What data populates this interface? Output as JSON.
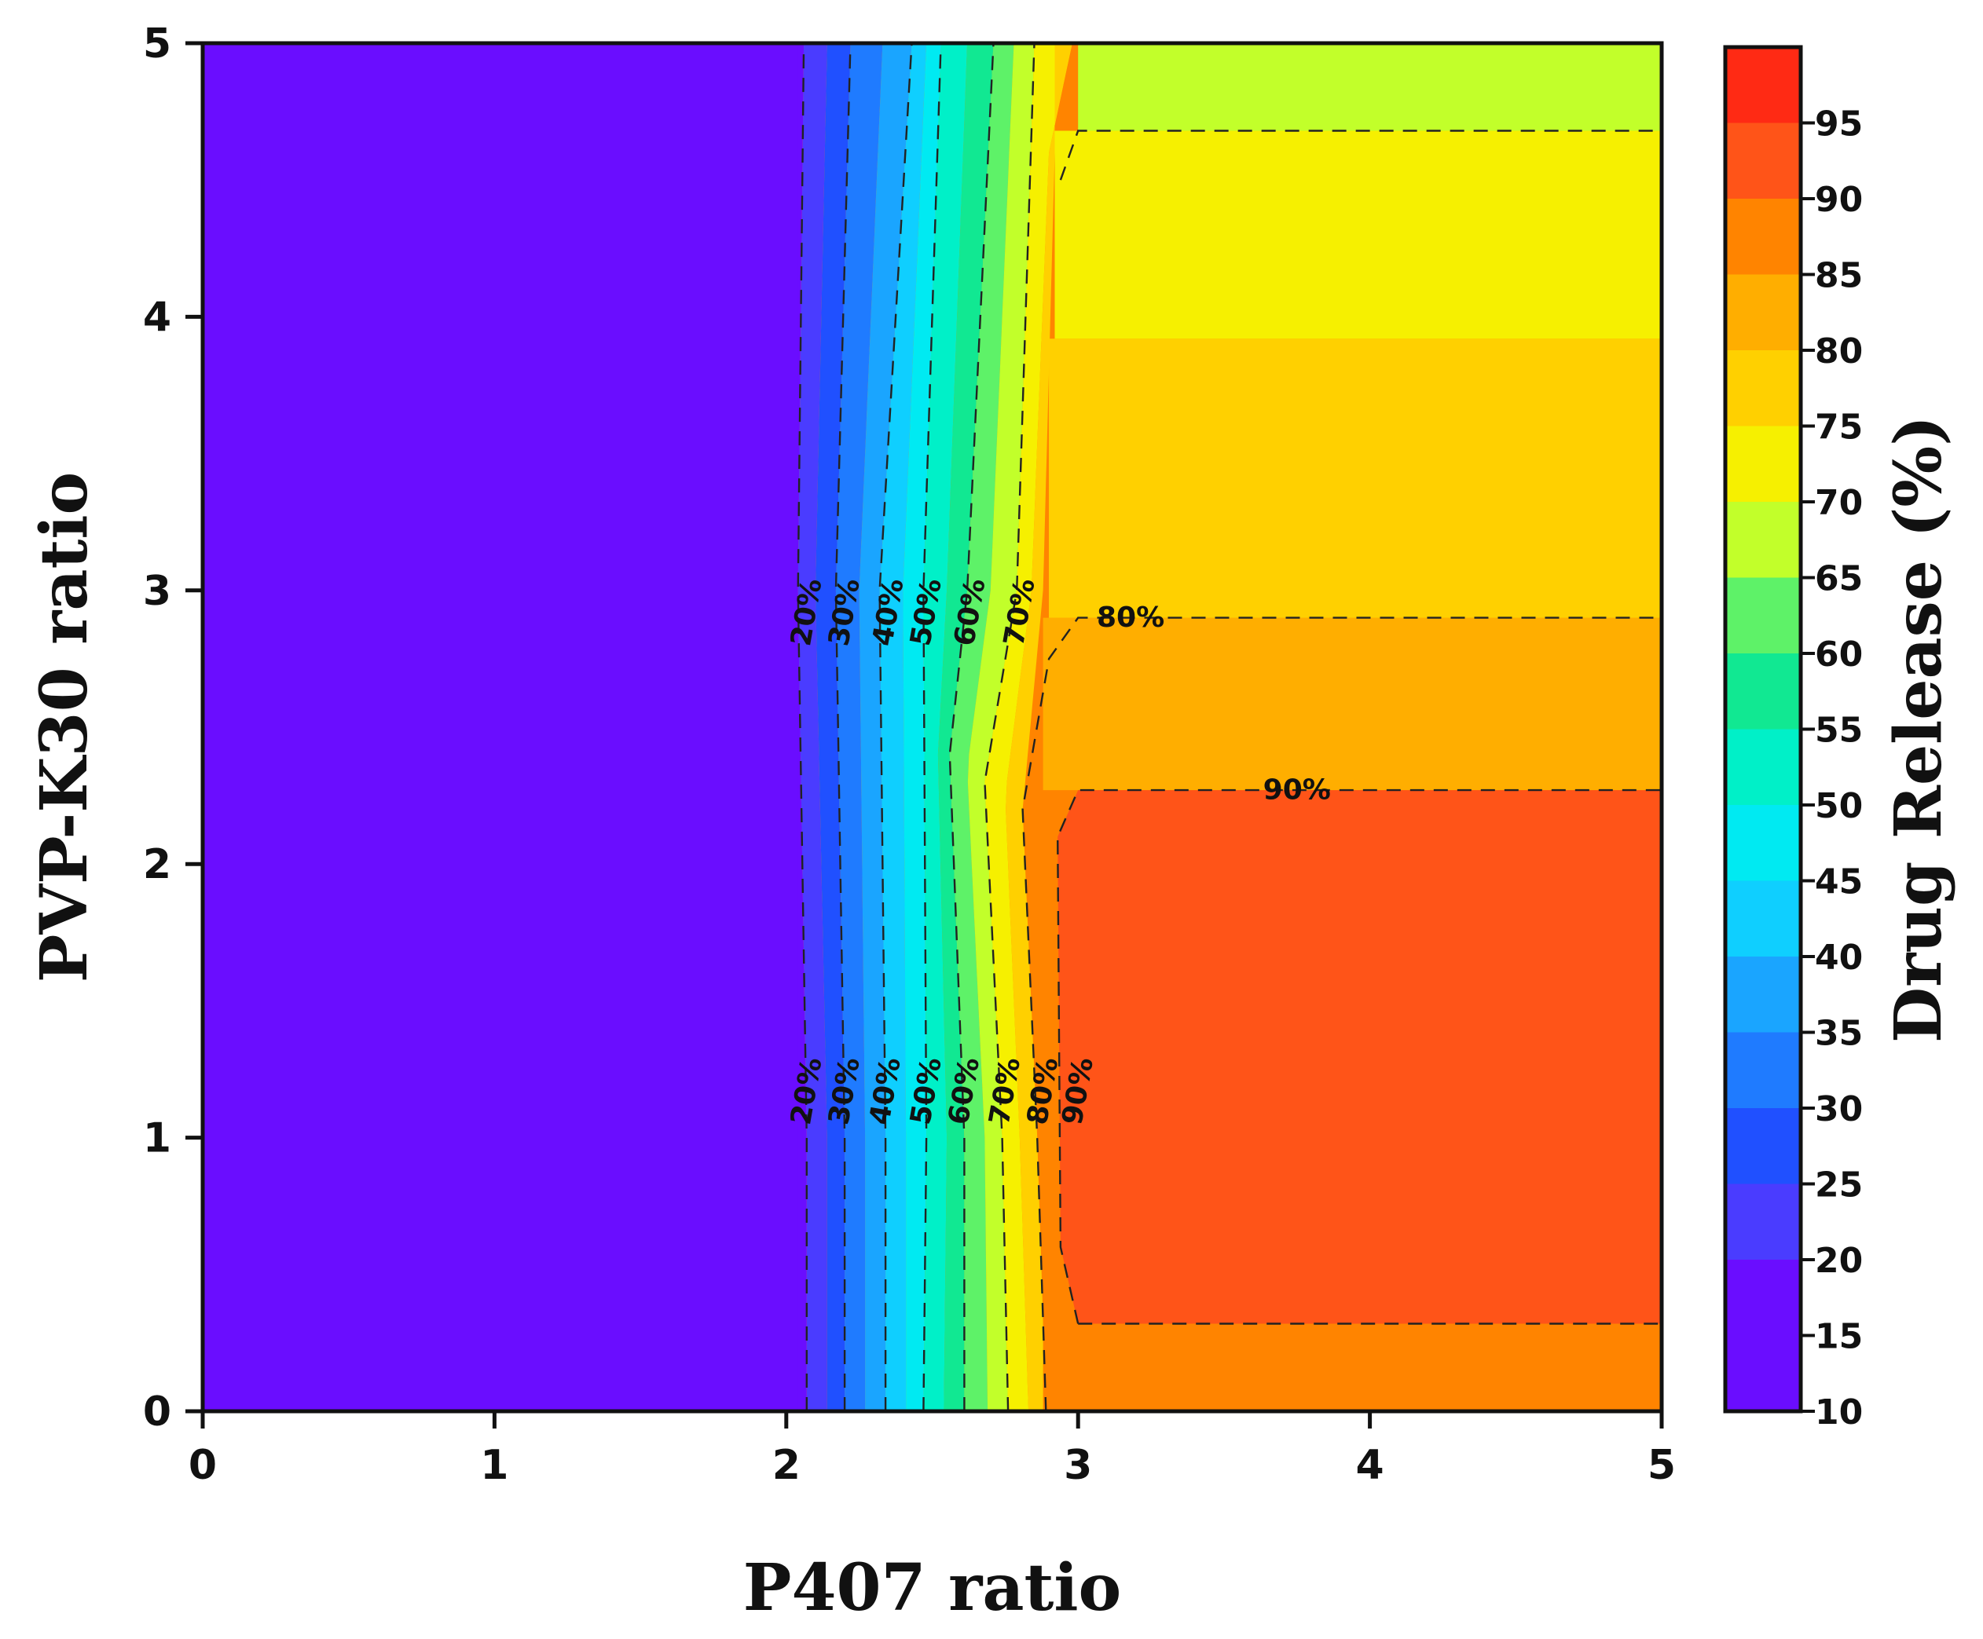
{
  "chart_data": {
    "type": "heatmap",
    "subtype": "filled-contour",
    "xlabel": "P407 ratio",
    "ylabel": "PVP-K30 ratio",
    "xlim": [
      0,
      5
    ],
    "ylim": [
      0,
      5
    ],
    "xticks": [
      "0",
      "1",
      "2",
      "3",
      "4",
      "5"
    ],
    "yticks": [
      "0",
      "1",
      "2",
      "3",
      "4",
      "5"
    ],
    "colorbar": {
      "label": "Drug Release (%)",
      "range": [
        10,
        100
      ],
      "ticks": [
        "10",
        "15",
        "20",
        "25",
        "30",
        "35",
        "40",
        "45",
        "50",
        "55",
        "60",
        "65",
        "70",
        "75",
        "80",
        "85",
        "90",
        "95"
      ],
      "bands": [
        {
          "from": 10,
          "to": 20,
          "color": "#6a0dff"
        },
        {
          "from": 20,
          "to": 25,
          "color": "#4a3cff"
        },
        {
          "from": 25,
          "to": 30,
          "color": "#2050ff"
        },
        {
          "from": 30,
          "to": 35,
          "color": "#1f7bff"
        },
        {
          "from": 35,
          "to": 40,
          "color": "#1aa5ff"
        },
        {
          "from": 40,
          "to": 45,
          "color": "#0fcfff"
        },
        {
          "from": 45,
          "to": 50,
          "color": "#00eaf2"
        },
        {
          "from": 50,
          "to": 55,
          "color": "#00f0c8"
        },
        {
          "from": 55,
          "to": 60,
          "color": "#11e892"
        },
        {
          "from": 60,
          "to": 65,
          "color": "#5ef268"
        },
        {
          "from": 65,
          "to": 70,
          "color": "#c2ff2a"
        },
        {
          "from": 70,
          "to": 75,
          "color": "#f6f000"
        },
        {
          "from": 75,
          "to": 80,
          "color": "#ffd000"
        },
        {
          "from": 80,
          "to": 85,
          "color": "#ffae00"
        },
        {
          "from": 85,
          "to": 90,
          "color": "#ff8400"
        },
        {
          "from": 90,
          "to": 95,
          "color": "#ff5418"
        },
        {
          "from": 95,
          "to": 100,
          "color": "#ff2a14"
        }
      ]
    },
    "contours": [
      {
        "level": 20,
        "label": "20%",
        "points": [
          [
            2.07,
            0
          ],
          [
            2.07,
            1
          ],
          [
            2.04,
            3
          ],
          [
            2.06,
            5
          ]
        ]
      },
      {
        "level": 30,
        "label": "30%",
        "points": [
          [
            2.2,
            0
          ],
          [
            2.2,
            1
          ],
          [
            2.17,
            3
          ],
          [
            2.22,
            5
          ]
        ]
      },
      {
        "level": 40,
        "label": "40%",
        "points": [
          [
            2.34,
            0
          ],
          [
            2.34,
            1
          ],
          [
            2.32,
            3
          ],
          [
            2.43,
            5
          ]
        ]
      },
      {
        "level": 50,
        "label": "50%",
        "points": [
          [
            2.47,
            0
          ],
          [
            2.48,
            1
          ],
          [
            2.47,
            3
          ],
          [
            2.53,
            5
          ]
        ]
      },
      {
        "level": 60,
        "label": "60%",
        "points": [
          [
            2.61,
            0
          ],
          [
            2.61,
            1
          ],
          [
            2.56,
            2.4
          ],
          [
            2.62,
            3
          ],
          [
            2.71,
            5
          ]
        ]
      },
      {
        "level": 70,
        "label": "70%",
        "points": [
          [
            2.76,
            0
          ],
          [
            2.74,
            1
          ],
          [
            2.68,
            2.3
          ],
          [
            2.79,
            3
          ],
          [
            2.85,
            5
          ]
        ]
      },
      {
        "level": 80,
        "label": "80%",
        "points": [
          [
            2.89,
            0
          ],
          [
            2.86,
            1
          ],
          [
            2.81,
            2.2
          ],
          [
            2.9,
            2.75
          ],
          [
            3.0,
            2.9
          ],
          [
            5,
            2.9
          ]
        ],
        "extra": [
          [
            2.94,
            4.5
          ],
          [
            3.0,
            4.68
          ],
          [
            5,
            4.68
          ]
        ]
      },
      {
        "level": 90,
        "label": "90%",
        "points": [
          [
            3.0,
            0.32
          ],
          [
            2.94,
            0.6
          ],
          [
            2.93,
            2.1
          ],
          [
            3.0,
            2.27
          ],
          [
            5,
            2.27
          ]
        ],
        "extra": [
          [
            3.0,
            0.32
          ],
          [
            5,
            0.32
          ]
        ]
      }
    ],
    "regions": [
      {
        "range": "10-20",
        "x_from": 0,
        "x_to": 2.07,
        "y_from": 0,
        "y_to": 5
      },
      {
        "range": "90-95",
        "x_from": 2.93,
        "x_to": 5,
        "y_from": 0.32,
        "y_to": 2.27
      },
      {
        "range": "85-90",
        "x_from": 2.88,
        "x_to": 5,
        "y_from": 0,
        "y_to": 2.6
      },
      {
        "range": "80-85",
        "x_from": 2.88,
        "x_to": 5,
        "y_from": 2.27,
        "y_to": 2.9
      },
      {
        "range": "75-80",
        "x_from": 2.9,
        "x_to": 5,
        "y_from": 2.9,
        "y_to": 3.92
      },
      {
        "range": "70-75",
        "x_from": 2.92,
        "x_to": 5,
        "y_from": 3.92,
        "y_to": 4.68
      },
      {
        "range": "65-70",
        "x_from": 3.0,
        "x_to": 5,
        "y_from": 4.68,
        "y_to": 5
      }
    ],
    "contour_label_positions": [
      {
        "label": "20%",
        "x": 2.07,
        "y": 2.92,
        "vertical": true
      },
      {
        "label": "30%",
        "x": 2.2,
        "y": 2.92,
        "vertical": true
      },
      {
        "label": "40%",
        "x": 2.35,
        "y": 2.92,
        "vertical": true
      },
      {
        "label": "50%",
        "x": 2.48,
        "y": 2.92,
        "vertical": true
      },
      {
        "label": "60%",
        "x": 2.63,
        "y": 2.92,
        "vertical": true
      },
      {
        "label": "70%",
        "x": 2.8,
        "y": 2.92,
        "vertical": true
      },
      {
        "label": "80%",
        "x": 3.18,
        "y": 2.9,
        "vertical": false
      },
      {
        "label": "90%",
        "x": 3.75,
        "y": 2.27,
        "vertical": false
      },
      {
        "label": "20%",
        "x": 2.07,
        "y": 1.17,
        "vertical": true
      },
      {
        "label": "30%",
        "x": 2.2,
        "y": 1.17,
        "vertical": true
      },
      {
        "label": "40%",
        "x": 2.34,
        "y": 1.17,
        "vertical": true
      },
      {
        "label": "50%",
        "x": 2.48,
        "y": 1.17,
        "vertical": true
      },
      {
        "label": "60%",
        "x": 2.61,
        "y": 1.17,
        "vertical": true
      },
      {
        "label": "70%",
        "x": 2.75,
        "y": 1.17,
        "vertical": true
      },
      {
        "label": "80%",
        "x": 2.88,
        "y": 1.17,
        "vertical": true
      },
      {
        "label": "90%",
        "x": 3.0,
        "y": 1.17,
        "vertical": true
      }
    ]
  }
}
